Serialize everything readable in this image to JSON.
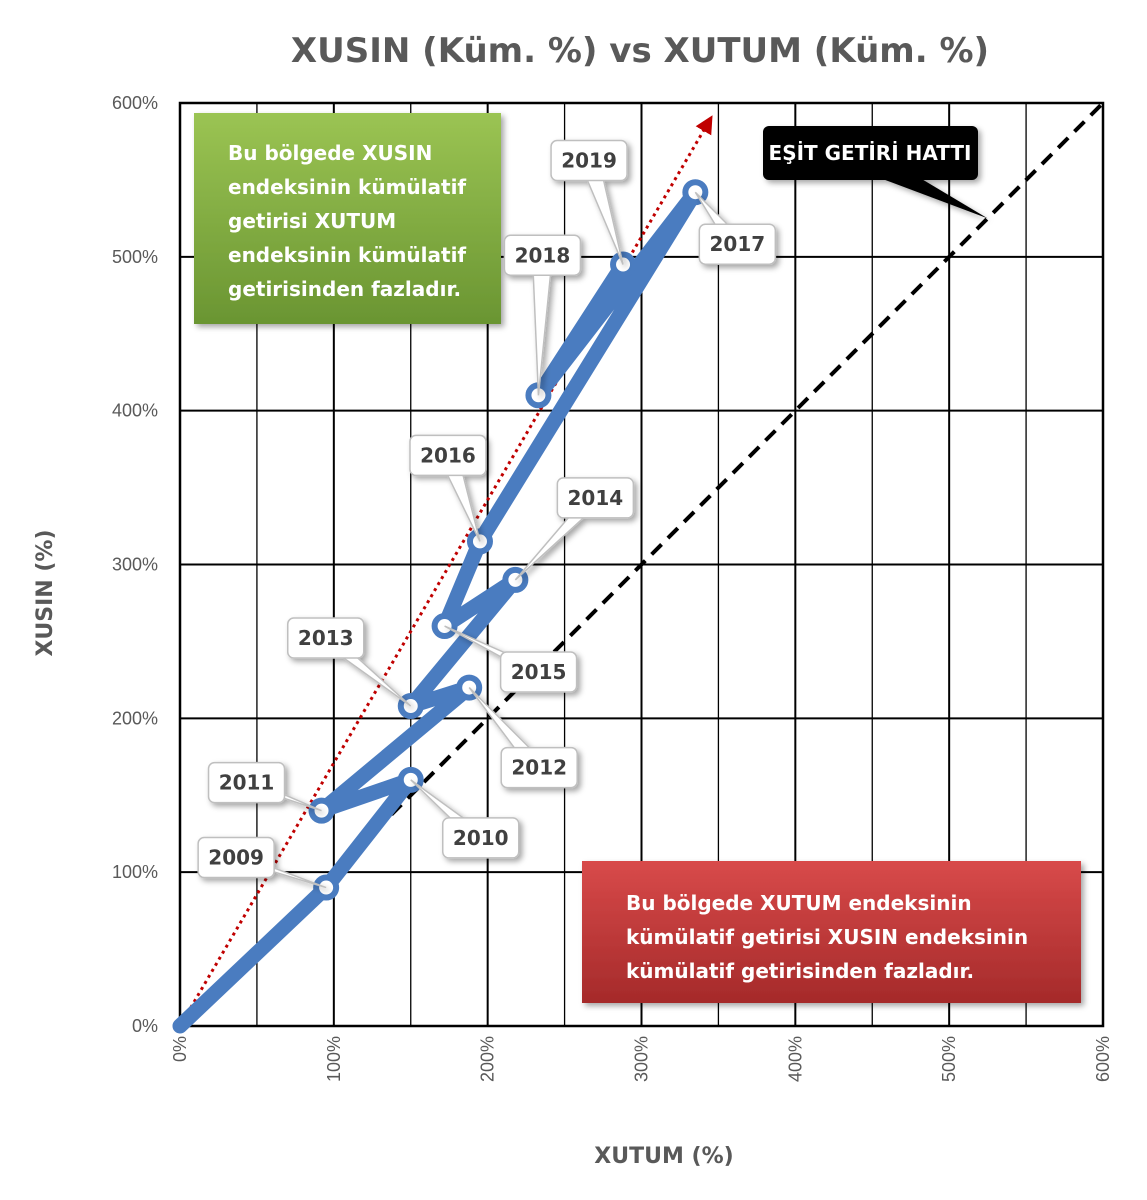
{
  "chart_data": {
    "type": "line",
    "title": "XUSIN (Küm. %) vs XUTUM (Küm. %)",
    "xlabel": "XUTUM (%)",
    "ylabel": "XUSIN (%)",
    "xlim": [
      0,
      600
    ],
    "ylim": [
      0,
      600
    ],
    "x_ticks": [
      "0%",
      "100%",
      "200%",
      "300%",
      "400%",
      "500%",
      "600%"
    ],
    "y_ticks": [
      "0%",
      "100%",
      "200%",
      "300%",
      "400%",
      "500%",
      "600%"
    ],
    "grid": true,
    "series": [
      {
        "color": "#4a7cc0",
        "points": [
          {
            "year": "",
            "x": 0,
            "y": 0
          },
          {
            "year": "2009",
            "x": 95,
            "y": 90
          },
          {
            "year": "2010",
            "x": 150,
            "y": 160
          },
          {
            "year": "2011",
            "x": 92,
            "y": 140
          },
          {
            "year": "2012",
            "x": 188,
            "y": 220
          },
          {
            "year": "2013",
            "x": 150,
            "y": 208
          },
          {
            "year": "2014",
            "x": 218,
            "y": 290
          },
          {
            "year": "2015",
            "x": 172,
            "y": 260
          },
          {
            "year": "2016",
            "x": 195,
            "y": 315
          },
          {
            "year": "2017",
            "x": 335,
            "y": 542
          },
          {
            "year": "2018",
            "x": 233,
            "y": 410
          },
          {
            "year": "2019",
            "x": 288,
            "y": 495
          }
        ]
      }
    ],
    "equal_return_line": {
      "x": [
        0,
        600
      ],
      "y": [
        0,
        600
      ],
      "color": "#000000"
    },
    "trend_line": {
      "x": [
        0,
        345
      ],
      "y": [
        0,
        590
      ],
      "color": "#c00000"
    },
    "annotations": {
      "equal_line_label": "EŞİT GETİRİ HATTI",
      "upper_region": [
        "Bu bölgede XUSIN",
        "endeksinin kümülatif",
        "getirisi XUTUM",
        "endeksinin kümülatif",
        "getirisinden fazladır."
      ],
      "lower_region": [
        "Bu bölgede XUTUM endeksinin",
        "kümülatif getirisi XUSIN endeksinin",
        "kümülatif getirisinden fazladır."
      ]
    },
    "colors": {
      "green_box": "#7aa63a",
      "red_box": "#b83232",
      "line": "#4a7cc0",
      "marker_fill": "#ffffff"
    }
  }
}
